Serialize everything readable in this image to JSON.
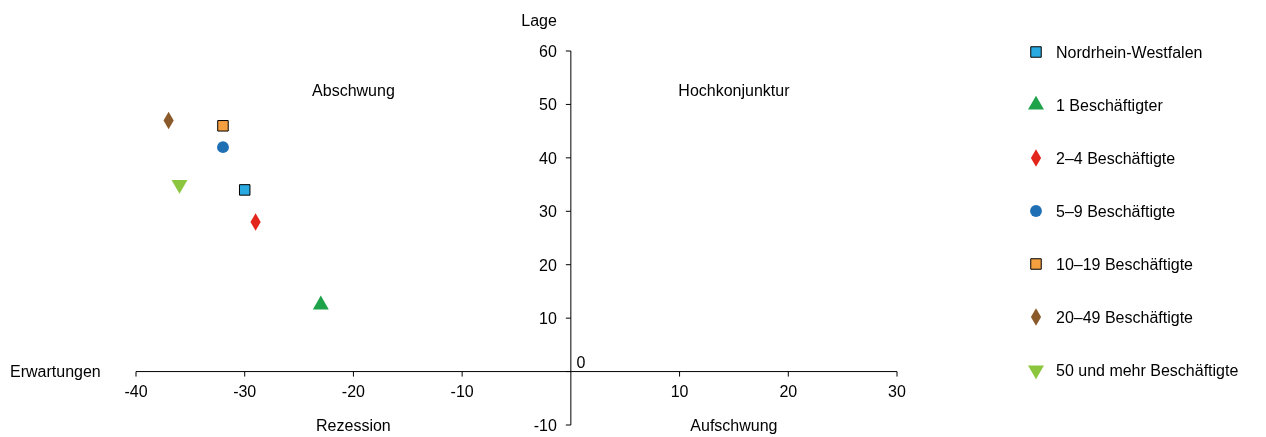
{
  "chart_data": {
    "type": "scatter",
    "xlabel": "Erwartungen",
    "ylabel": "Lage",
    "annotations": [
      "Abschwung",
      "Hochkonjunktur",
      "Rezession",
      "Aufschwung",
      "0"
    ],
    "xlim": [
      -40,
      30
    ],
    "ylim": [
      -10,
      60
    ],
    "xticks": [
      -40,
      -30,
      -20,
      -10,
      10,
      20,
      30
    ],
    "yticks": [
      -10,
      {
        "value": 0,
        "label": null
      },
      10,
      20,
      30,
      40,
      50,
      60
    ],
    "grid": false,
    "legend": "right",
    "series": [
      {
        "name": "Nordrhein-Westfalen",
        "color": "#29abe2",
        "marker": "square",
        "x": [
          -30
        ],
        "values": [
          34
        ]
      },
      {
        "name": "1 Beschäftigter",
        "color": "#1fa34a",
        "marker": "triangle",
        "x": [
          -23
        ],
        "values": [
          12.5
        ]
      },
      {
        "name": "2–4 Beschäftigte",
        "color": "#e2261c",
        "marker": "diamond",
        "x": [
          -29
        ],
        "values": [
          28
        ]
      },
      {
        "name": "5–9 Beschäftigte",
        "color": "#1f6fb4",
        "marker": "circle",
        "x": [
          -32
        ],
        "values": [
          42
        ]
      },
      {
        "name": "10–19 Beschäftigte",
        "color": "#f4a040",
        "marker": "square",
        "x": [
          -32
        ],
        "values": [
          46
        ]
      },
      {
        "name": "20–49 Beschäftigte",
        "color": "#8b5a2b",
        "marker": "diamond",
        "x": [
          -37
        ],
        "values": [
          47
        ]
      },
      {
        "name": "50 und mehr Beschäftigte",
        "color": "#8cc63f",
        "marker": "triangle-down",
        "x": [
          -36
        ],
        "values": [
          35
        ]
      }
    ]
  }
}
